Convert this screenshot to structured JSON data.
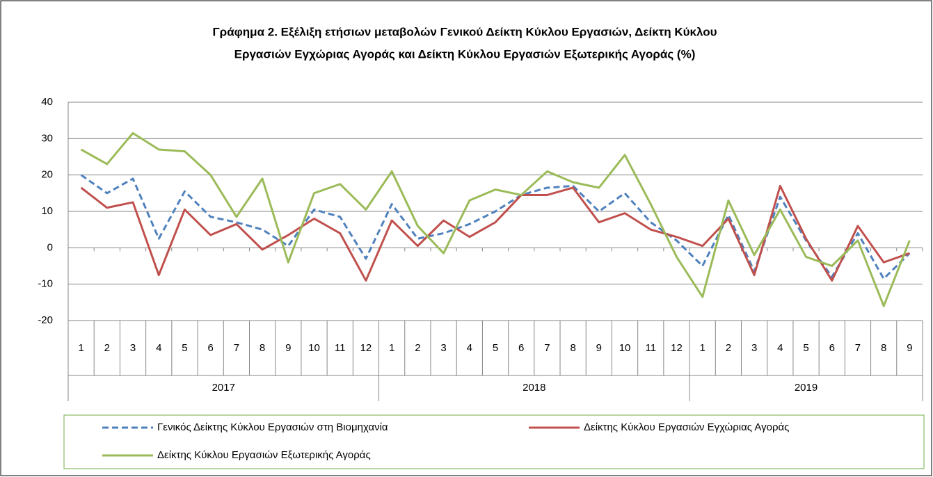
{
  "chart_data": {
    "type": "line",
    "title": [
      "Γράφημα 2. Εξέλιξη ετήσιων μεταβολών Γενικού Δείκτη Κύκλου Εργασιών,  Δείκτη Κύκλου",
      "Εργασιών Εγχώριας Αγοράς και Δείκτη Κύκλου Εργασιών Εξωτερικής Αγοράς  (%)"
    ],
    "groups": [
      {
        "label": "2017",
        "categories": [
          "1",
          "2",
          "3",
          "4",
          "5",
          "6",
          "7",
          "8",
          "9",
          "10",
          "11",
          "12"
        ]
      },
      {
        "label": "2018",
        "categories": [
          "1",
          "2",
          "3",
          "4",
          "5",
          "6",
          "7",
          "8",
          "9",
          "10",
          "11",
          "12"
        ]
      },
      {
        "label": "2019",
        "categories": [
          "1",
          "2",
          "3",
          "4",
          "5",
          "6",
          "7",
          "8",
          "9"
        ]
      }
    ],
    "ylim": [
      -20,
      40
    ],
    "yticks": [
      -20,
      -10,
      0,
      10,
      20,
      30,
      40
    ],
    "grid": true,
    "legend": "bottom",
    "series": [
      {
        "name": "Γενικός Δείκτης Κύκλου Εργασιών στη Βιομηχανία",
        "color": "#4f81bd",
        "dash": true,
        "values": [
          20,
          15,
          19,
          2.5,
          15.5,
          8.5,
          7,
          5,
          0.5,
          10.5,
          8.5,
          -3,
          12,
          2.5,
          4,
          6.5,
          10,
          14.5,
          16.5,
          17,
          10,
          15,
          7,
          2,
          -5,
          9,
          -6.5,
          14,
          2,
          -8,
          4,
          -8.5,
          -1.5
        ]
      },
      {
        "name": "Δείκτης Κύκλου Εργασιών Εγχώριας Αγοράς",
        "color": "#c0504d",
        "dash": false,
        "values": [
          16.5,
          11,
          12.5,
          -7.5,
          10.5,
          3.5,
          6.5,
          -0.5,
          3.5,
          8,
          4,
          -9,
          7.5,
          0.5,
          7.5,
          3,
          7,
          14.5,
          14.5,
          16.5,
          7,
          9.5,
          5,
          3,
          0.5,
          8,
          -7.5,
          17,
          2.5,
          -9,
          6,
          -4,
          -1.5
        ]
      },
      {
        "name": "Δείκτης Κύκλου Εργασιών Εξωτερικής Αγοράς",
        "color": "#9bbb59",
        "dash": false,
        "values": [
          27,
          23,
          31.5,
          27,
          26.5,
          20,
          8.5,
          19,
          -4,
          15,
          17.5,
          10.5,
          21,
          6,
          -1.5,
          13,
          16,
          14.5,
          21,
          18,
          16.5,
          25.5,
          12,
          -2.5,
          -13.5,
          13,
          -2,
          10.5,
          -2.5,
          -5,
          2,
          -16,
          2
        ]
      }
    ]
  }
}
